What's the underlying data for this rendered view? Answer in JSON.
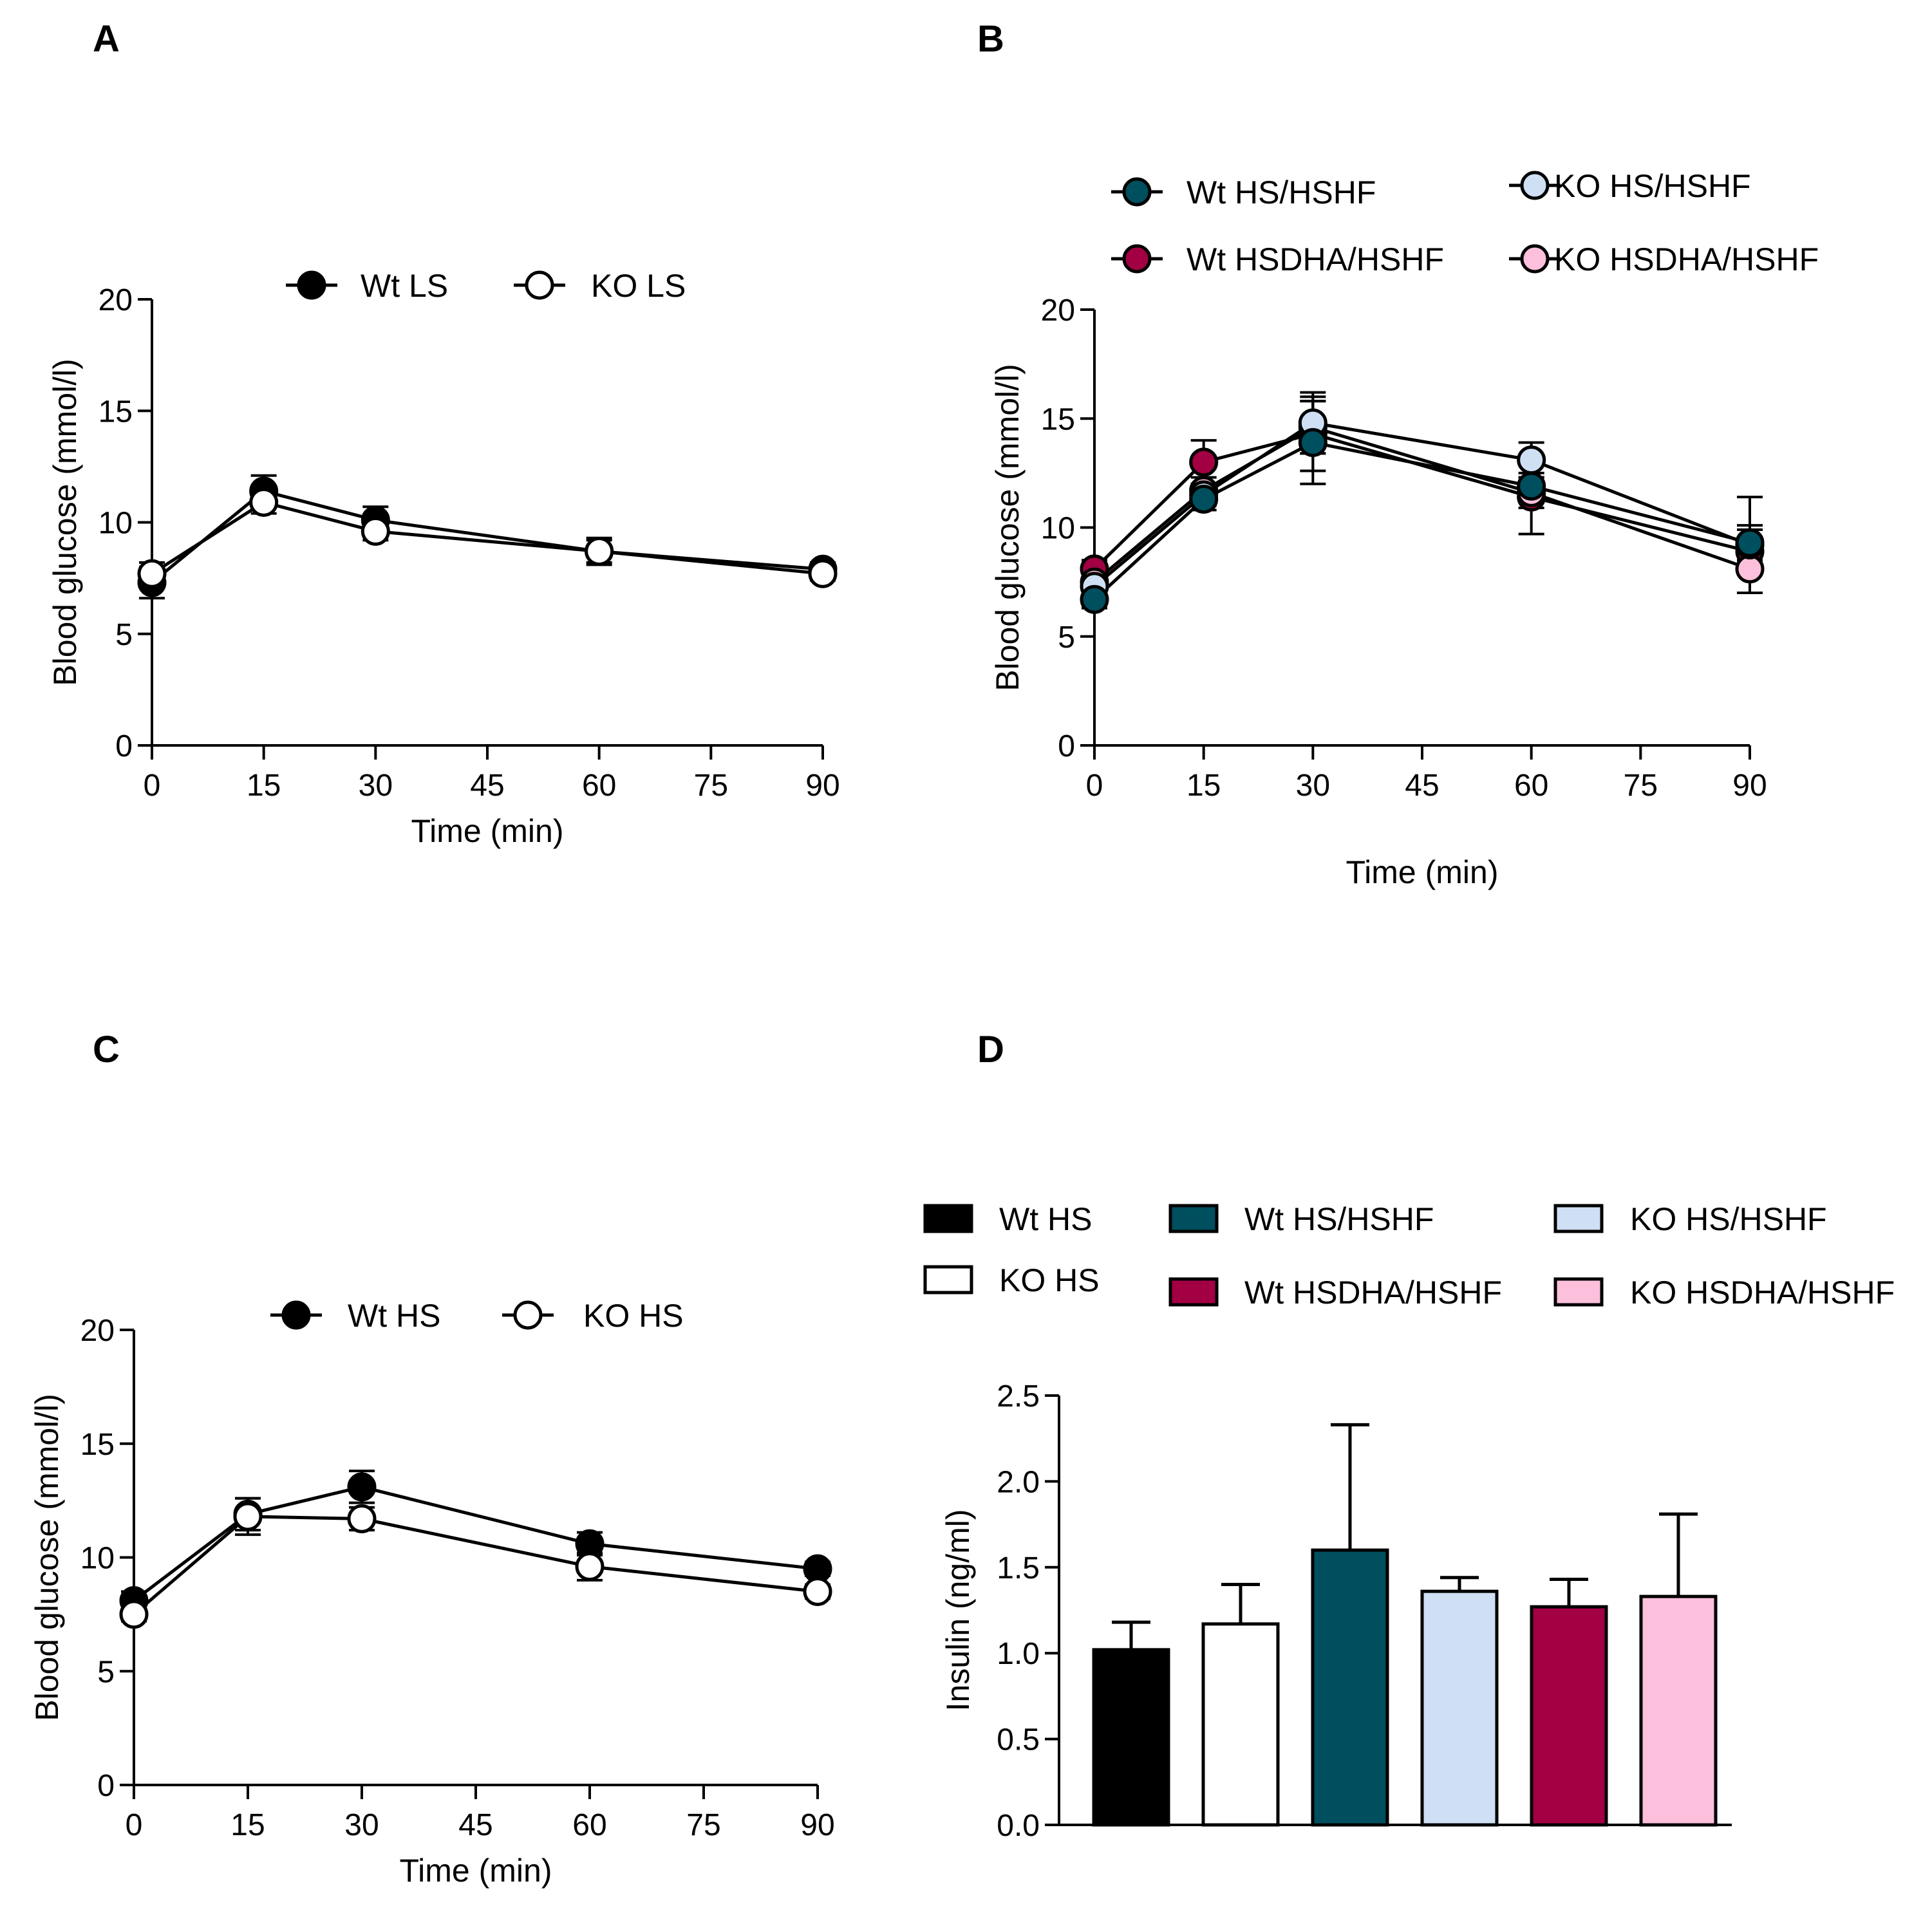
{
  "figure": {
    "panels": [
      {
        "id": "A",
        "label": "A"
      },
      {
        "id": "B",
        "label": "B"
      },
      {
        "id": "C",
        "label": "C"
      },
      {
        "id": "D",
        "label": "D"
      }
    ]
  },
  "colors": {
    "black": "#000000",
    "white": "#ffffff",
    "wt_hs_hshf": "#004f5e",
    "ko_hs_hshf": "#cfe0f5",
    "wt_hsdha_hshf": "#a30044",
    "ko_hsdha_hshf": "#fcc0dc"
  },
  "chart_data": [
    {
      "panel": "A",
      "type": "line",
      "title": "",
      "xlabel": "Time (min)",
      "ylabel": "Blood glucose (mmol/l)",
      "xlim": [
        0,
        90
      ],
      "ylim": [
        0,
        20
      ],
      "xticks": [
        0,
        15,
        30,
        45,
        60,
        75,
        90
      ],
      "yticks": [
        0,
        5,
        10,
        15,
        20
      ],
      "x": [
        0,
        15,
        30,
        60,
        90
      ],
      "series": [
        {
          "name": "Wt LS",
          "fill": "#000000",
          "values": [
            7.3,
            11.4,
            10.1,
            8.7,
            7.9
          ],
          "err": [
            0.7,
            0.7,
            0.6,
            0.6,
            0.3
          ]
        },
        {
          "name": "KO LS",
          "fill": "#ffffff",
          "values": [
            7.7,
            10.9,
            9.6,
            8.7,
            7.7
          ],
          "err": [
            0.5,
            0.5,
            0.4,
            0.5,
            0.3
          ]
        }
      ],
      "legend": {
        "position": "top-center",
        "items": [
          "Wt LS",
          "KO LS"
        ]
      }
    },
    {
      "panel": "B",
      "type": "line",
      "title": "",
      "xlabel": "Time (min)",
      "ylabel": "Blood glucose (mmol/l)",
      "xlim": [
        0,
        90
      ],
      "ylim": [
        0,
        20
      ],
      "xticks": [
        0,
        15,
        30,
        45,
        60,
        75,
        90
      ],
      "yticks": [
        0,
        5,
        10,
        15,
        20
      ],
      "x": [
        0,
        15,
        30,
        60,
        90
      ],
      "series": [
        {
          "name": "Wt HSDHA/HSHF",
          "fill": "#a30044",
          "values": [
            8.1,
            13.0,
            14.3,
            11.4,
            8.9
          ],
          "err": [
            0.4,
            1.0,
            1.7,
            1.7,
            1.0
          ]
        },
        {
          "name": "KO HSDHA/HSHF",
          "fill": "#fcc0dc",
          "values": [
            7.5,
            11.7,
            14.6,
            11.6,
            8.1
          ],
          "err": [
            0.4,
            0.6,
            1.2,
            0.7,
            1.1
          ]
        },
        {
          "name": "KO HS/HSHF",
          "fill": "#cfe0f5",
          "values": [
            7.3,
            11.5,
            14.8,
            13.1,
            9.2
          ],
          "err": [
            0.4,
            0.5,
            1.4,
            0.8,
            2.2
          ]
        },
        {
          "name": "Wt HS/HSHF",
          "fill": "#004f5e",
          "values": [
            6.7,
            11.3,
            13.9,
            11.9,
            9.3
          ],
          "err": [
            0.4,
            0.5,
            1.9,
            0.6,
            0.8
          ]
        }
      ],
      "legend": {
        "position": "top",
        "items": [
          "Wt HS/HSHF",
          "KO HS/HSHF",
          "Wt HSDHA/HSHF",
          "KO HSDHA/HSHF"
        ]
      }
    },
    {
      "panel": "C",
      "type": "line",
      "title": "",
      "xlabel": "Time (min)",
      "ylabel": "Blood glucose (mmol/l)",
      "xlim": [
        0,
        90
      ],
      "ylim": [
        0,
        20
      ],
      "xticks": [
        0,
        15,
        30,
        45,
        60,
        75,
        90
      ],
      "yticks": [
        0,
        5,
        10,
        15,
        20
      ],
      "x": [
        0,
        15,
        30,
        60,
        90
      ],
      "series": [
        {
          "name": "Wt HS",
          "fill": "#000000",
          "values": [
            8.1,
            11.9,
            13.1,
            10.6,
            9.5
          ],
          "err": [
            0.4,
            0.7,
            0.7,
            0.5,
            0.3
          ]
        },
        {
          "name": "KO HS",
          "fill": "#ffffff",
          "values": [
            7.5,
            11.8,
            11.7,
            9.6,
            8.5
          ],
          "err": [
            0.3,
            0.8,
            0.5,
            0.6,
            0.3
          ]
        }
      ],
      "legend": {
        "position": "top-center",
        "items": [
          "Wt HS",
          "KO HS"
        ]
      }
    },
    {
      "panel": "D",
      "type": "bar",
      "title": "",
      "xlabel": "",
      "ylabel": "Insulin (ng/ml)",
      "ylim": [
        0,
        2.5
      ],
      "yticks": [
        0.0,
        0.5,
        1.0,
        1.5,
        2.0,
        2.5
      ],
      "categories": [
        "Wt HS",
        "KO HS",
        "Wt HS/HSHF",
        "KO HS/HSHF",
        "Wt HSDHA/HSHF",
        "KO HSDHA/HSHF"
      ],
      "values": [
        1.02,
        1.17,
        1.6,
        1.36,
        1.27,
        1.33
      ],
      "err": [
        0.16,
        0.23,
        0.73,
        0.08,
        0.16,
        0.48
      ],
      "fills": [
        "#000000",
        "#ffffff",
        "#004f5e",
        "#cfe0f5",
        "#a30044",
        "#fcc0dc"
      ],
      "legend": {
        "position": "top",
        "items": [
          "Wt HS",
          "KO HS",
          "Wt HS/HSHF",
          "Wt HSDHA/HSHF",
          "KO HS/HSHF",
          "KO HSDHA/HSHF"
        ]
      }
    }
  ]
}
